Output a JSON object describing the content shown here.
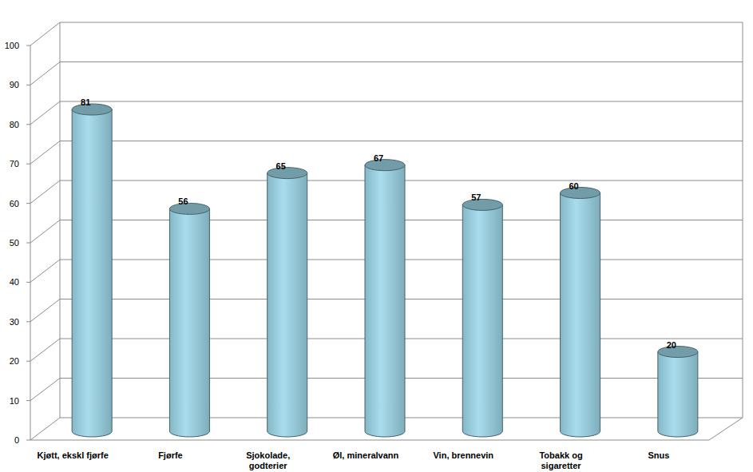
{
  "chart_data": {
    "type": "bar",
    "categories": [
      "Kjøtt, ekskl fjørfe",
      "Fjørfe",
      "Sjokolade, godterier",
      "Øl, mineralvann",
      "Vin, brennevin",
      "Tobakk og sigaretter",
      "Snus"
    ],
    "values": [
      81,
      56,
      65,
      67,
      57,
      60,
      20
    ],
    "color": "#9dd8ea",
    "ylim": [
      0,
      100
    ],
    "yticks": [
      0,
      10,
      20,
      30,
      40,
      50,
      60,
      70,
      80,
      90,
      100
    ],
    "grid": true,
    "data_labels": true
  }
}
